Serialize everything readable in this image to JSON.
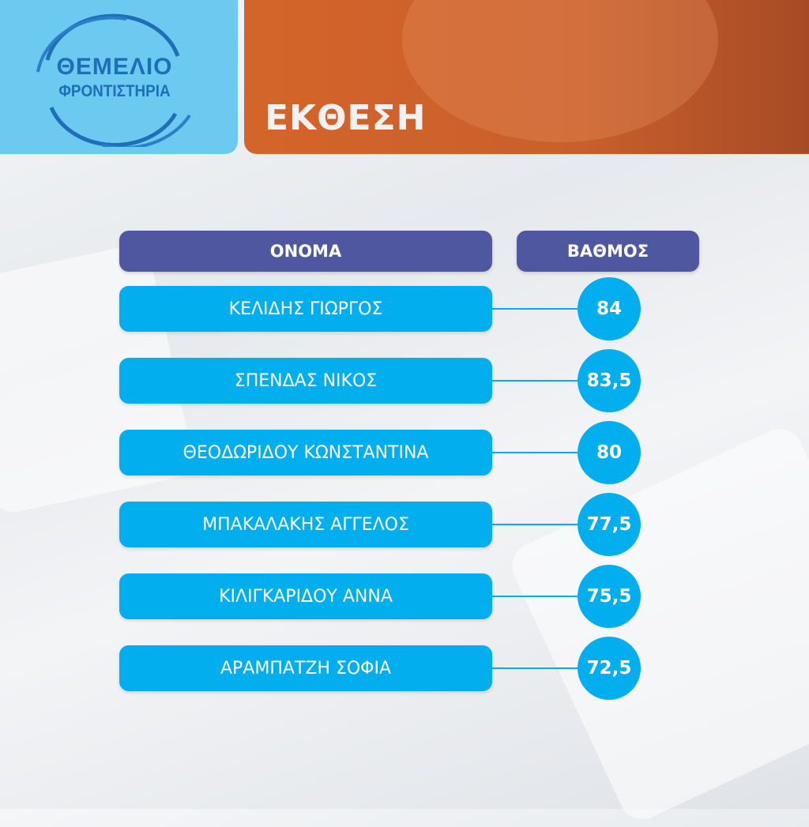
{
  "logo": {
    "line1": "ΘΕΜΕΛΙΟ",
    "line2": "ΦΡΟΝΤΙΣΤΗΡΙΑ"
  },
  "title": "ΕΚΘΕΣΗ",
  "table": {
    "headers": {
      "name": "ΟΝΟΜΑ",
      "grade": "ΒΑΘΜΟΣ"
    },
    "rows": [
      {
        "name": "ΚΕΛΙΔΗΣ ΓΙΩΡΓΟΣ",
        "grade": "84"
      },
      {
        "name": "ΣΠΕΝΔΑΣ ΝΙΚΟΣ",
        "grade": "83,5"
      },
      {
        "name": "ΘΕΟΔΩΡΙΔΟΥ ΚΩΝΣΤΑΝΤΙΝΑ",
        "grade": "80"
      },
      {
        "name": "ΜΠΑΚΑΛΑΚΗΣ ΑΓΓΕΛΟΣ",
        "grade": "77,5"
      },
      {
        "name": "ΚΙΛΙΓΚΑΡΙΔΟΥ ΑΝΝΑ",
        "grade": "75,5"
      },
      {
        "name": "ΑΡΑΜΠΑΤΖΗ ΣΟΦΙΑ",
        "grade": "72,5"
      }
    ]
  },
  "colors": {
    "logo_panel": "#6cc9ef",
    "title_panel": "#d4652a",
    "header": "#4f57a0",
    "row": "#03aeef",
    "logo_text": "#1f6fb8"
  }
}
